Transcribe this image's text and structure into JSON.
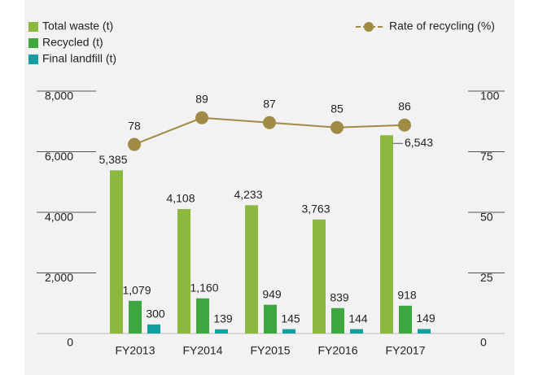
{
  "chart_data": {
    "type": "bar",
    "categories": [
      "FY2013",
      "FY2014",
      "FY2015",
      "FY2016",
      "FY2017"
    ],
    "series": [
      {
        "name": "Total waste (t)",
        "color": "#8db83f",
        "values": [
          5385,
          4108,
          4233,
          3763,
          6543
        ],
        "value_labels": [
          "5,385",
          "4,108",
          "4,233",
          "3,763",
          "6,543"
        ]
      },
      {
        "name": "Recycled (t)",
        "color": "#3ea73f",
        "values": [
          1079,
          1160,
          949,
          839,
          918
        ],
        "value_labels": [
          "1,079",
          "1,160",
          "949",
          "839",
          "918"
        ]
      },
      {
        "name": "Final landfill (t)",
        "color": "#139f9f",
        "values": [
          300,
          139,
          145,
          144,
          149
        ]
      },
      {
        "name": "Rate of recycling (%)",
        "color": "#a08b45",
        "type": "line",
        "axis": "y2",
        "values": [
          78,
          89,
          87,
          85,
          86
        ]
      }
    ],
    "ylim": [
      0,
      8000
    ],
    "yticks": [
      0,
      {
        "value": 2000,
        "label": "2,000"
      },
      {
        "value": 4000,
        "label": "4,000"
      },
      {
        "value": 6000,
        "label": "6,000"
      },
      {
        "value": 8000,
        "label": "8,000"
      }
    ],
    "y2lim": [
      0,
      100
    ],
    "y2ticks": [
      0,
      25,
      50,
      75,
      100
    ]
  }
}
